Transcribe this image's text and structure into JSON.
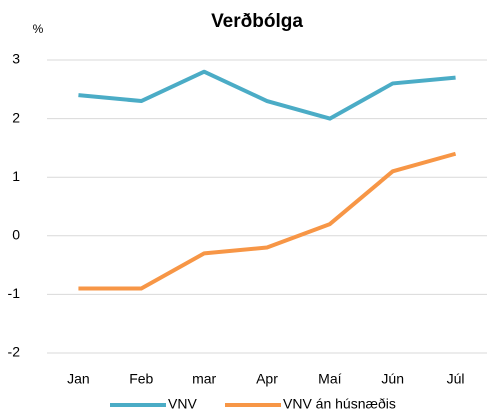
{
  "chart_data": {
    "type": "line",
    "title": "Verðbólga",
    "y_label": "%",
    "categories": [
      "Jan",
      "Feb",
      "mar",
      "Apr",
      "Maí",
      "Jún",
      "Júl"
    ],
    "series": [
      {
        "name": "VNV",
        "color": "#4bacc6",
        "values": [
          2.4,
          2.3,
          2.8,
          2.3,
          2.0,
          2.6,
          2.7
        ]
      },
      {
        "name": "VNV án húsnæðis",
        "color": "#f79646",
        "values": [
          -0.9,
          -0.9,
          -0.3,
          -0.2,
          0.2,
          1.1,
          1.4
        ]
      }
    ],
    "ylim": [
      -2,
      3
    ],
    "yticks": [
      -2,
      -1,
      0,
      1,
      2,
      3
    ],
    "grid": true,
    "legend": "bottom"
  }
}
